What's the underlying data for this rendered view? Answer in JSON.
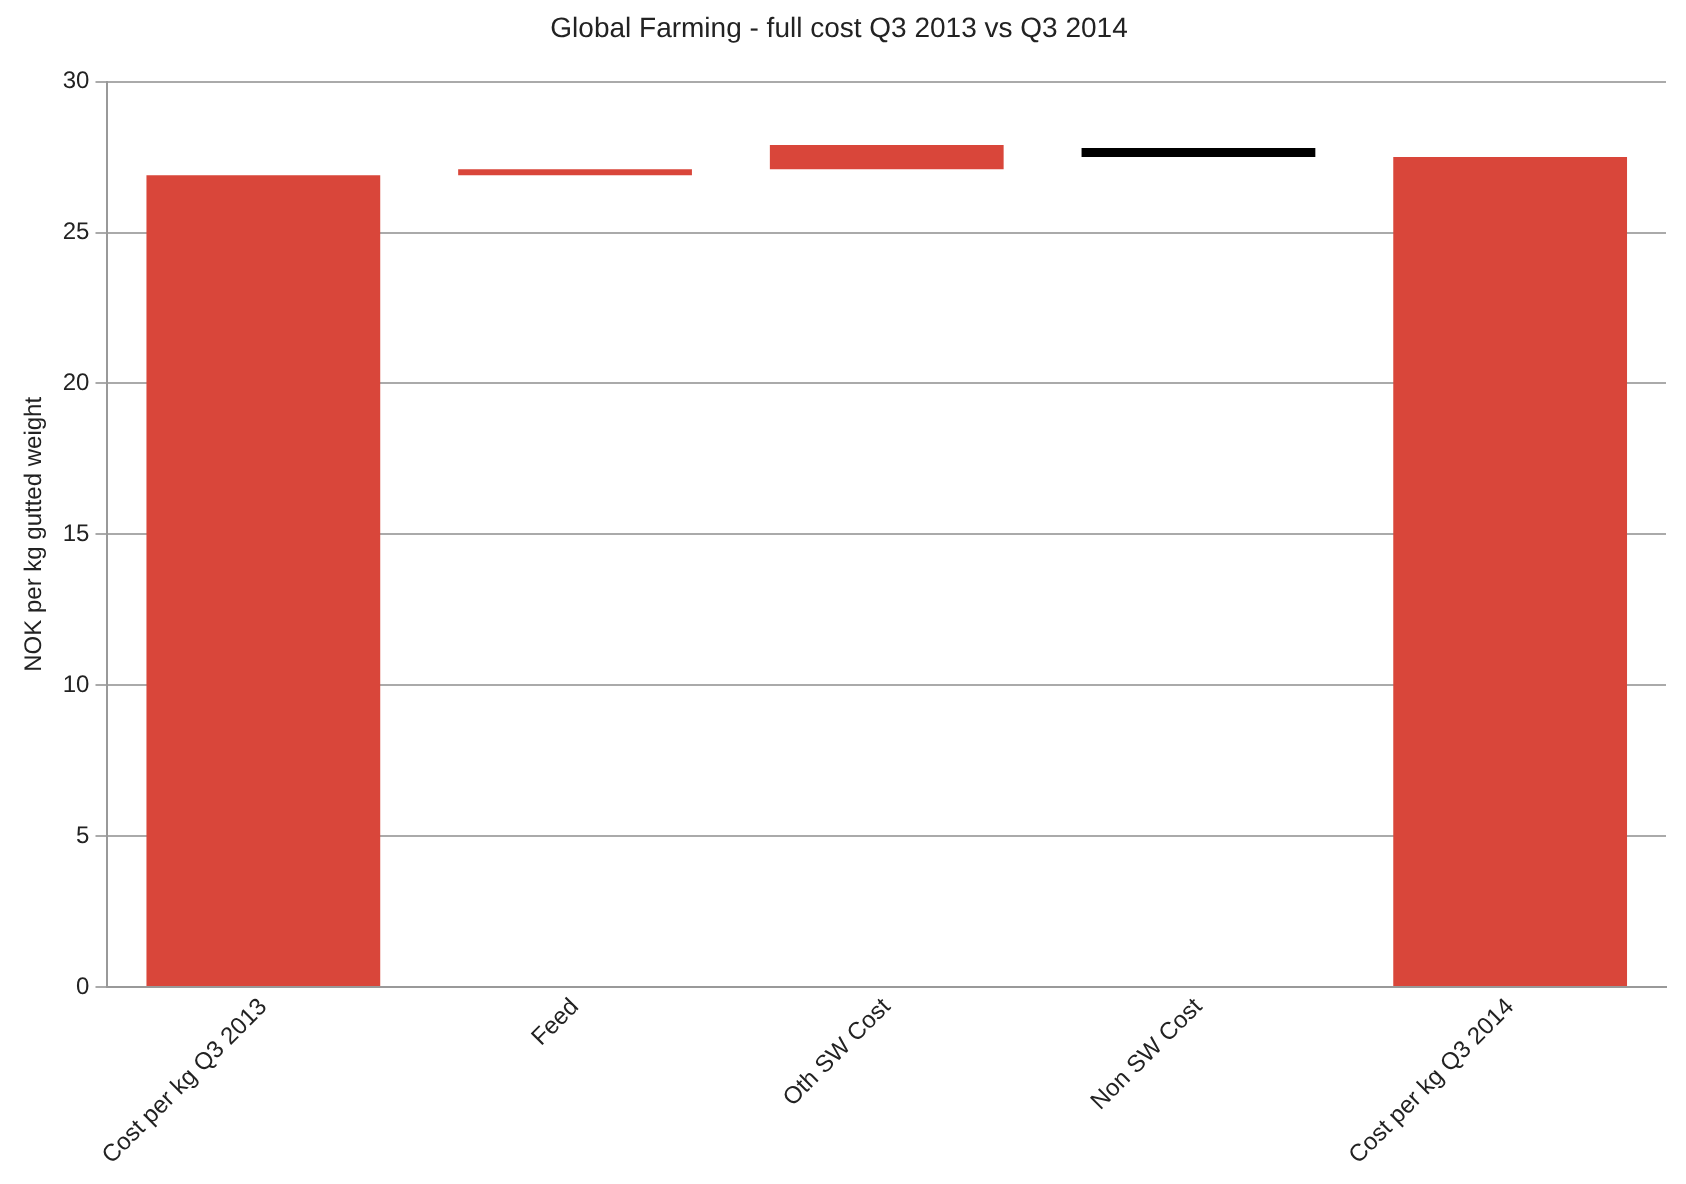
{
  "chart_data": {
    "type": "bar",
    "title": "Global Farming - full cost Q3 2013 vs Q3 2014",
    "ylabel": "NOK per kg gutted weight",
    "categories": [
      "Cost per kg Q3 2013",
      "Feed",
      "Oth SW Cost",
      "Non SW Cost",
      "Cost per kg Q3 2014"
    ],
    "values": [
      26.9,
      0.2,
      0.8,
      0.3,
      27.5
    ],
    "base": [
      0,
      26.9,
      27.1,
      27.5,
      0
    ],
    "colors": [
      "#d9463a",
      "#d9463a",
      "#d9463a",
      "#000000",
      "#d9463a"
    ],
    "ylim": [
      0,
      30
    ],
    "yticks": [
      0,
      5,
      10,
      15,
      20,
      25,
      30
    ],
    "grid": "y"
  }
}
